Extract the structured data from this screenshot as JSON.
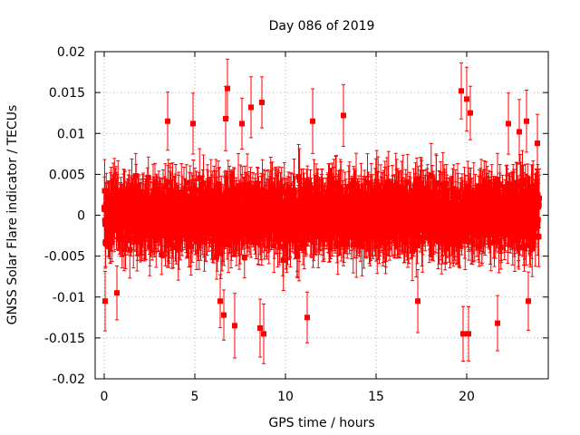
{
  "chart_data": {
    "type": "scatter",
    "title": "Day 086 of 2019",
    "xlabel": "GPS time / hours",
    "ylabel": "GNSS Solar Flare indicator / TECUs",
    "xlim": [
      -0.5,
      24.5
    ],
    "ylim": [
      -0.02,
      0.02
    ],
    "x_ticks": [
      0,
      5,
      10,
      15,
      20
    ],
    "x_tick_labels": [
      "0",
      "5",
      "10",
      "15",
      "20"
    ],
    "y_ticks": [
      -0.02,
      -0.015,
      -0.01,
      -0.005,
      0,
      0.005,
      0.01,
      0.015,
      0.02
    ],
    "y_tick_labels": [
      "-0.02",
      "-0.015",
      "-0.01",
      "-0.005",
      "0",
      "0.005",
      "0.01",
      "0.015",
      "0.02"
    ],
    "grid": true,
    "series": [
      {
        "name": "Solar flare indicator",
        "color": "#ff0000",
        "marker": "square",
        "error_bars": true,
        "x_range": [
          0,
          24
        ],
        "sample_interval_hours": 0.0125,
        "typical_range": [
          -0.008,
          0.009
        ],
        "notable_points": [
          {
            "x": 0.05,
            "y": -0.0105
          },
          {
            "x": 0.7,
            "y": -0.0095
          },
          {
            "x": 3.5,
            "y": 0.0115
          },
          {
            "x": 4.9,
            "y": 0.0112
          },
          {
            "x": 6.4,
            "y": -0.0105
          },
          {
            "x": 6.7,
            "y": 0.0118
          },
          {
            "x": 6.6,
            "y": -0.0122
          },
          {
            "x": 6.8,
            "y": 0.0155
          },
          {
            "x": 7.2,
            "y": -0.0135
          },
          {
            "x": 7.6,
            "y": 0.0112
          },
          {
            "x": 8.1,
            "y": 0.0132
          },
          {
            "x": 8.6,
            "y": -0.0138
          },
          {
            "x": 8.7,
            "y": 0.0138
          },
          {
            "x": 8.8,
            "y": -0.0145
          },
          {
            "x": 11.2,
            "y": -0.0125
          },
          {
            "x": 11.5,
            "y": 0.0115
          },
          {
            "x": 13.2,
            "y": 0.0122
          },
          {
            "x": 17.3,
            "y": -0.0105
          },
          {
            "x": 19.7,
            "y": 0.0152
          },
          {
            "x": 19.8,
            "y": -0.0145
          },
          {
            "x": 20.0,
            "y": 0.0142
          },
          {
            "x": 20.1,
            "y": -0.0145
          },
          {
            "x": 20.2,
            "y": 0.0125
          },
          {
            "x": 21.7,
            "y": -0.0132
          },
          {
            "x": 22.3,
            "y": 0.0112
          },
          {
            "x": 22.9,
            "y": 0.0102
          },
          {
            "x": 23.3,
            "y": 0.0115
          },
          {
            "x": 23.4,
            "y": -0.0105
          },
          {
            "x": 23.9,
            "y": 0.0088
          }
        ]
      }
    ]
  }
}
